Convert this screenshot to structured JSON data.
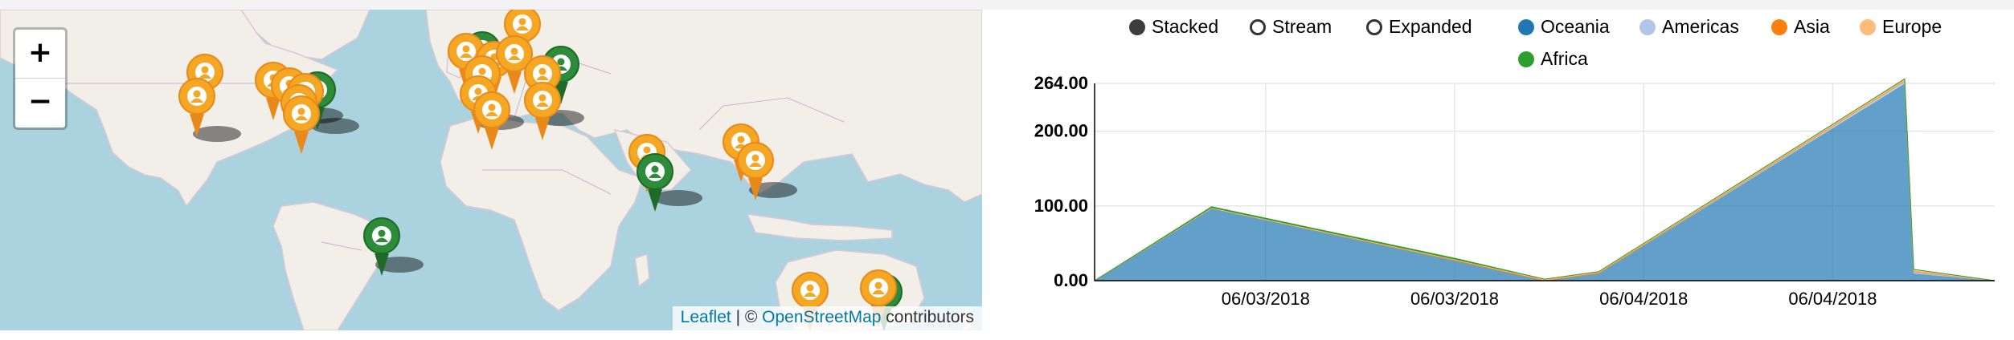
{
  "map": {
    "zoom_in": "+",
    "zoom_out": "−",
    "attribution": {
      "leaflet": "Leaflet",
      "separator": " | © ",
      "osm": "OpenStreetMap",
      "suffix": " contributors"
    },
    "colors": {
      "water": "#aad3df",
      "land": "#f2efe9",
      "marker_orange": "#f5a623",
      "marker_green": "#2e8b3a"
    }
  },
  "chart": {
    "style_options": [
      {
        "label": "Stacked",
        "selected": true
      },
      {
        "label": "Stream",
        "selected": false
      },
      {
        "label": "Expanded",
        "selected": false
      }
    ],
    "series_legend": [
      {
        "label": "Oceania",
        "color": "#1f77b4"
      },
      {
        "label": "Americas",
        "color": "#aec7e8"
      },
      {
        "label": "Asia",
        "color": "#ff7f0e"
      },
      {
        "label": "Europe",
        "color": "#ffbb78"
      },
      {
        "label": "Africa",
        "color": "#2ca02c"
      }
    ]
  },
  "chart_data": {
    "type": "area",
    "y_ticks": [
      "264.00",
      "200.00",
      "100.00",
      "0.00"
    ],
    "x_ticks": [
      "06/03/2018",
      "06/03/2018",
      "06/04/2018",
      "06/04/2018"
    ],
    "ylim": [
      0,
      264
    ],
    "grid": true,
    "legend_position": "top",
    "x": [
      0,
      0.13,
      0.4,
      0.5,
      0.56,
      0.9,
      0.91,
      1.0
    ],
    "series": [
      {
        "name": "Oceania",
        "color": "#1f77b4",
        "values": [
          0,
          97,
          27,
          0,
          10,
          264,
          10,
          0
        ]
      },
      {
        "name": "Americas",
        "color": "#aec7e8",
        "values": [
          0,
          0,
          0,
          0,
          0,
          3,
          2,
          0
        ]
      },
      {
        "name": "Asia",
        "color": "#ff7f0e",
        "values": [
          0,
          0,
          1,
          1,
          1,
          1,
          1,
          0
        ]
      },
      {
        "name": "Europe",
        "color": "#ffbb78",
        "values": [
          0,
          1,
          1,
          1,
          1,
          2,
          2,
          0
        ]
      },
      {
        "name": "Africa",
        "color": "#2ca02c",
        "values": [
          0,
          1,
          1,
          0,
          0,
          0,
          0,
          0
        ]
      }
    ]
  }
}
